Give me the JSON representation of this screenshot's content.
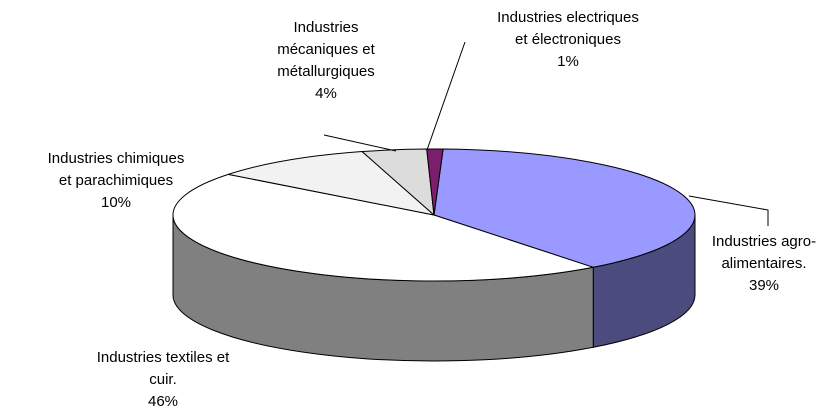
{
  "chart_data": {
    "type": "pie",
    "style": "3d",
    "series": [
      {
        "values": [
          39,
          46,
          10,
          4,
          1
        ],
        "labels": [
          [
            "Industries agro-",
            "alimentaires.",
            "39%"
          ],
          [
            "Industries textiles et",
            "cuir.",
            "46%"
          ],
          [
            "Industries chimiques",
            "et parachimiques",
            "10%"
          ],
          [
            "Industries",
            "mécaniques et",
            "métallurgiques",
            "4%"
          ],
          [
            "Industries electriques",
            "et électroniques",
            "1%"
          ]
        ]
      }
    ],
    "colors": {
      "top": [
        "#9999FF",
        "#FFFFFF",
        "#F2F2F2",
        "#DCDCDC",
        "#7B1E6E"
      ],
      "side": [
        "#4B4B7E",
        "#808080",
        "#777777",
        "#6B6B6B",
        "#3D0F37"
      ]
    },
    "legend": "none"
  }
}
